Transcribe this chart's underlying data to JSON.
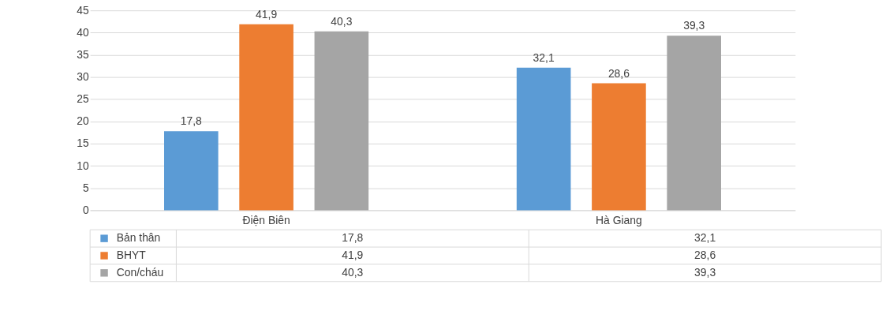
{
  "chart_data": {
    "type": "bar",
    "categories": [
      "Điện Biên",
      "Hà Giang"
    ],
    "series": [
      {
        "name": "Bản thân",
        "color": "#5b9bd5",
        "values": [
          17.8,
          32.1
        ],
        "value_labels": [
          "17,8",
          "32,1"
        ]
      },
      {
        "name": "BHYT",
        "color": "#ed7d31",
        "values": [
          41.9,
          28.6
        ],
        "value_labels": [
          "41,9",
          "28,6"
        ]
      },
      {
        "name": "Con/cháu",
        "color": "#a5a5a5",
        "values": [
          40.3,
          39.3
        ],
        "value_labels": [
          "40,3",
          "39,3"
        ]
      }
    ],
    "ylim": [
      0,
      45
    ],
    "yticks": [
      0,
      5,
      10,
      15,
      20,
      25,
      30,
      35,
      40,
      45
    ],
    "grid": "y",
    "legend": "bottom"
  }
}
